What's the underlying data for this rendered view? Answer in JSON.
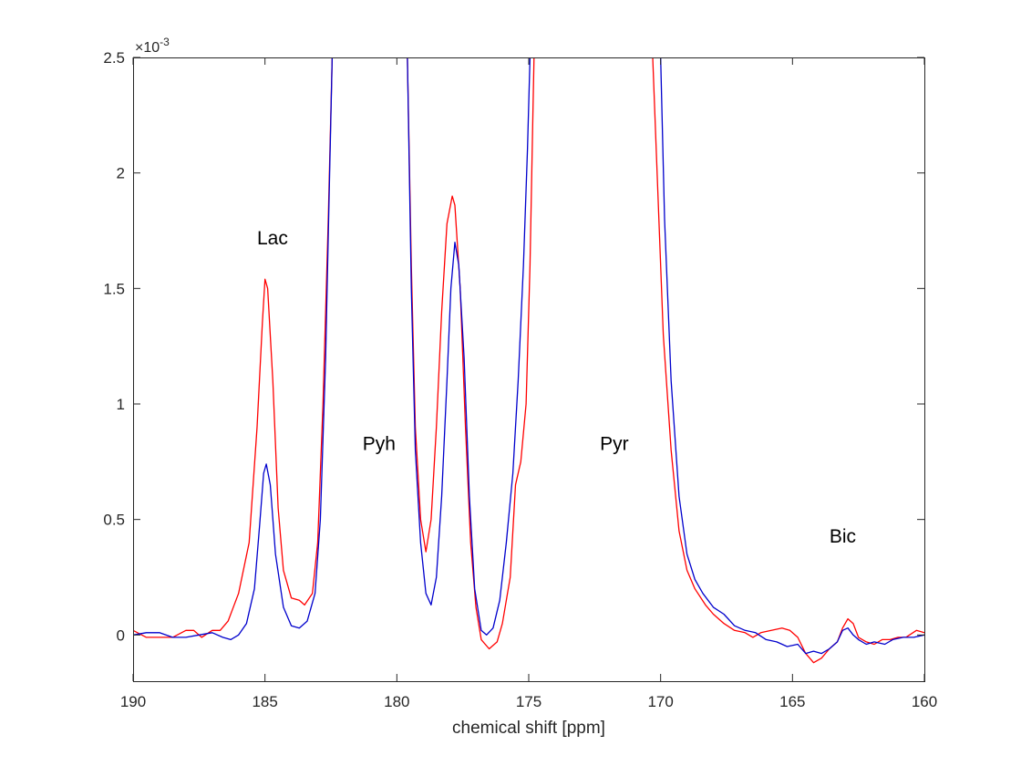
{
  "chart_data": {
    "type": "line",
    "title": "",
    "xlabel": "chemical shift [ppm]",
    "ylabel": "",
    "y_exponent_label": "×10",
    "y_exponent": "-3",
    "xlim": [
      190,
      160
    ],
    "x_reversed": true,
    "ylim": [
      -0.0002,
      0.0025
    ],
    "x_ticks": [
      190,
      185,
      180,
      175,
      170,
      165,
      160
    ],
    "x_tick_labels": [
      "190",
      "185",
      "180",
      "175",
      "170",
      "165",
      "160"
    ],
    "y_ticks": [
      0,
      0.0005,
      0.001,
      0.0015,
      0.002,
      0.0025
    ],
    "y_tick_labels": [
      "0",
      "0.5",
      "1",
      "1.5",
      "2",
      "2.5"
    ],
    "grid": false,
    "annotations": [
      {
        "text": "Lac",
        "x": 185.3,
        "y": 0.00169
      },
      {
        "text": "Pyh",
        "x": 181.3,
        "y": 0.0008
      },
      {
        "text": "Pyr",
        "x": 172.3,
        "y": 0.0008
      },
      {
        "text": "Bic",
        "x": 163.6,
        "y": 0.0004
      }
    ],
    "series": [
      {
        "color": "#ff0000",
        "points": [
          [
            190,
            2e-05
          ],
          [
            189.5,
            -1e-05
          ],
          [
            189,
            -1e-05
          ],
          [
            188.5,
            -1e-05
          ],
          [
            188,
            2e-05
          ],
          [
            187.7,
            2e-05
          ],
          [
            187.4,
            -1e-05
          ],
          [
            187,
            2e-05
          ],
          [
            186.7,
            2e-05
          ],
          [
            186.4,
            6e-05
          ],
          [
            186,
            0.00018
          ],
          [
            185.6,
            0.0004
          ],
          [
            185.3,
            0.0009
          ],
          [
            185.1,
            0.00135
          ],
          [
            185,
            0.00154
          ],
          [
            184.9,
            0.0015
          ],
          [
            184.7,
            0.0011
          ],
          [
            184.5,
            0.00055
          ],
          [
            184.3,
            0.00028
          ],
          [
            184,
            0.00016
          ],
          [
            183.7,
            0.00015
          ],
          [
            183.5,
            0.00013
          ],
          [
            183.2,
            0.00018
          ],
          [
            183,
            0.0004
          ],
          [
            182.8,
            0.001
          ],
          [
            182.6,
            0.0018
          ],
          [
            182.45,
            0.0025
          ]
        ]
      },
      {
        "color": "#ff0000",
        "points": [
          [
            179.6,
            0.0025
          ],
          [
            179.45,
            0.0016
          ],
          [
            179.3,
            0.0009
          ],
          [
            179.1,
            0.0005
          ],
          [
            178.9,
            0.00036
          ],
          [
            178.7,
            0.0005
          ],
          [
            178.5,
            0.0009
          ],
          [
            178.3,
            0.0014
          ],
          [
            178.1,
            0.00178
          ],
          [
            177.9,
            0.0019
          ],
          [
            177.8,
            0.00186
          ],
          [
            177.6,
            0.0015
          ],
          [
            177.4,
            0.0009
          ],
          [
            177.2,
            0.0004
          ],
          [
            177,
            0.00012
          ],
          [
            176.8,
            -2e-05
          ],
          [
            176.5,
            -6e-05
          ],
          [
            176.2,
            -3e-05
          ],
          [
            176,
            5e-05
          ],
          [
            175.7,
            0.00025
          ],
          [
            175.5,
            0.00065
          ],
          [
            175.3,
            0.00075
          ],
          [
            175.1,
            0.001
          ],
          [
            174.95,
            0.0016
          ],
          [
            174.85,
            0.0022
          ],
          [
            174.8,
            0.0025
          ]
        ]
      },
      {
        "color": "#ff0000",
        "points": [
          [
            170.3,
            0.0025
          ],
          [
            170.1,
            0.0019
          ],
          [
            169.9,
            0.0013
          ],
          [
            169.6,
            0.0008
          ],
          [
            169.3,
            0.00045
          ],
          [
            169,
            0.00028
          ],
          [
            168.7,
            0.0002
          ],
          [
            168.3,
            0.00013
          ],
          [
            168,
            9e-05
          ],
          [
            167.6,
            5e-05
          ],
          [
            167.2,
            2e-05
          ],
          [
            166.8,
            1e-05
          ],
          [
            166.5,
            -1e-05
          ],
          [
            166.2,
            1e-05
          ],
          [
            165.8,
            2e-05
          ],
          [
            165.4,
            3e-05
          ],
          [
            165.1,
            2e-05
          ],
          [
            164.8,
            -1e-05
          ],
          [
            164.5,
            -8e-05
          ],
          [
            164.2,
            -0.00012
          ],
          [
            163.9,
            -0.0001
          ],
          [
            163.6,
            -6e-05
          ],
          [
            163.3,
            -3e-05
          ],
          [
            163.1,
            3e-05
          ],
          [
            162.9,
            7e-05
          ],
          [
            162.7,
            5e-05
          ],
          [
            162.5,
            -1e-05
          ],
          [
            162.2,
            -3e-05
          ],
          [
            161.9,
            -4e-05
          ],
          [
            161.6,
            -2e-05
          ],
          [
            161.3,
            -2e-05
          ],
          [
            161,
            -1e-05
          ],
          [
            160.7,
            -1e-05
          ],
          [
            160.3,
            2e-05
          ],
          [
            160,
            1e-05
          ]
        ]
      },
      {
        "color": "#0000cc",
        "points": [
          [
            190,
            0
          ],
          [
            189.5,
            1e-05
          ],
          [
            189,
            1e-05
          ],
          [
            188.5,
            -1e-05
          ],
          [
            188,
            -1e-05
          ],
          [
            187.5,
            0
          ],
          [
            187,
            1e-05
          ],
          [
            186.6,
            -1e-05
          ],
          [
            186.3,
            -2e-05
          ],
          [
            186,
            0
          ],
          [
            185.7,
            5e-05
          ],
          [
            185.4,
            0.0002
          ],
          [
            185.2,
            0.00048
          ],
          [
            185.05,
            0.0007
          ],
          [
            184.95,
            0.00074
          ],
          [
            184.8,
            0.00065
          ],
          [
            184.6,
            0.00035
          ],
          [
            184.3,
            0.00012
          ],
          [
            184,
            4e-05
          ],
          [
            183.7,
            3e-05
          ],
          [
            183.4,
            6e-05
          ],
          [
            183.1,
            0.00018
          ],
          [
            182.9,
            0.0005
          ],
          [
            182.7,
            0.0012
          ],
          [
            182.55,
            0.002
          ],
          [
            182.45,
            0.0025
          ]
        ]
      },
      {
        "color": "#0000cc",
        "points": [
          [
            179.6,
            0.0025
          ],
          [
            179.45,
            0.0015
          ],
          [
            179.3,
            0.0008
          ],
          [
            179.1,
            0.0004
          ],
          [
            178.9,
            0.00018
          ],
          [
            178.7,
            0.00013
          ],
          [
            178.5,
            0.00025
          ],
          [
            178.3,
            0.0006
          ],
          [
            178.1,
            0.0011
          ],
          [
            177.95,
            0.0015
          ],
          [
            177.8,
            0.0017
          ],
          [
            177.65,
            0.0016
          ],
          [
            177.45,
            0.0012
          ],
          [
            177.25,
            0.0006
          ],
          [
            177.05,
            0.0002
          ],
          [
            176.8,
            2e-05
          ],
          [
            176.6,
            0
          ],
          [
            176.35,
            3e-05
          ],
          [
            176.1,
            0.00015
          ],
          [
            175.85,
            0.0004
          ],
          [
            175.6,
            0.0007
          ],
          [
            175.4,
            0.0011
          ],
          [
            175.2,
            0.0016
          ],
          [
            175.05,
            0.0021
          ],
          [
            174.95,
            0.0025
          ]
        ]
      },
      {
        "color": "#0000cc",
        "points": [
          [
            170,
            0.0025
          ],
          [
            169.85,
            0.0018
          ],
          [
            169.6,
            0.0011
          ],
          [
            169.3,
            0.0006
          ],
          [
            169,
            0.00035
          ],
          [
            168.7,
            0.00024
          ],
          [
            168.4,
            0.00018
          ],
          [
            168,
            0.00012
          ],
          [
            167.6,
            9e-05
          ],
          [
            167.2,
            4e-05
          ],
          [
            166.8,
            2e-05
          ],
          [
            166.4,
            1e-05
          ],
          [
            166,
            -2e-05
          ],
          [
            165.6,
            -3e-05
          ],
          [
            165.2,
            -5e-05
          ],
          [
            164.8,
            -4e-05
          ],
          [
            164.5,
            -8e-05
          ],
          [
            164.2,
            -7e-05
          ],
          [
            163.9,
            -8e-05
          ],
          [
            163.6,
            -6e-05
          ],
          [
            163.3,
            -3e-05
          ],
          [
            163.1,
            2e-05
          ],
          [
            162.9,
            3e-05
          ],
          [
            162.7,
            0
          ],
          [
            162.5,
            -2e-05
          ],
          [
            162.2,
            -4e-05
          ],
          [
            161.9,
            -3e-05
          ],
          [
            161.5,
            -4e-05
          ],
          [
            161.2,
            -2e-05
          ],
          [
            160.8,
            -1e-05
          ],
          [
            160.4,
            -1e-05
          ],
          [
            160,
            0
          ]
        ]
      }
    ]
  }
}
